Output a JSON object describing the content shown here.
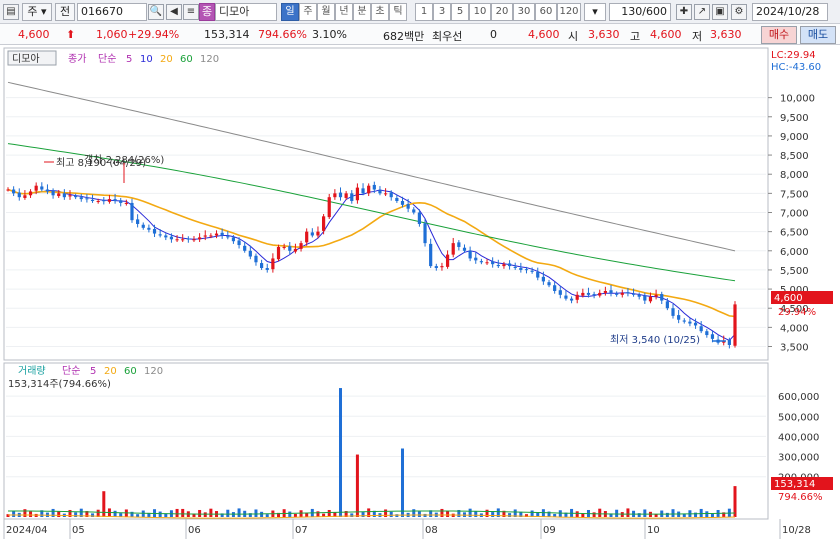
{
  "toolbar": {
    "market": "주",
    "prev": "전",
    "code": "016670",
    "tag": "종",
    "name": "디모아",
    "periods": [
      "일",
      "주",
      "월",
      "년",
      "분",
      "초",
      "틱"
    ],
    "minutes": [
      "1",
      "3",
      "5",
      "10",
      "20",
      "30",
      "60",
      "120"
    ],
    "count": "130/600",
    "date": "2024/10/28"
  },
  "quote": {
    "price": "4,600",
    "change": "1,060",
    "change_pct": "+29.94%",
    "volume": "153,314",
    "volume_ratio": "794.66%",
    "turnover": "3.10%",
    "trade_value": "682백만",
    "short_label": "최우선",
    "short_value": "0",
    "current": "4,600",
    "open_label": "시",
    "open": "3,630",
    "high_label": "고",
    "high": "4,600",
    "low_label": "저",
    "low": "3,630",
    "buy": "매수",
    "sell": "매도"
  },
  "chart_data": [
    {
      "type": "candlestick",
      "title": "디모아",
      "legend": [
        "종가",
        "단순",
        "5",
        "10",
        "20",
        "60",
        "120"
      ],
      "ylim": [
        3200,
        10800
      ],
      "yticks": [
        "10,000",
        "9,500",
        "9,000",
        "8,500",
        "8,000",
        "7,500",
        "7,000",
        "6,500",
        "6,000",
        "5,500",
        "5,000",
        "4,500",
        "4,000",
        "3,500"
      ],
      "ytick_values": [
        10000,
        9500,
        9000,
        8500,
        8000,
        7500,
        7000,
        6500,
        6000,
        5500,
        5000,
        4500,
        4000,
        3500
      ],
      "lc_label": "LC:29.94",
      "hc_label": "HC:-43.60",
      "last_price_label": "4,600",
      "last_pct_label": "29.94%",
      "max_annotation": "최고 8,190 (04/29)",
      "max_overlay": "갭차 2,284(26%)",
      "min_annotation": "최저 3,540 (10/25)",
      "closes": [
        7600,
        7500,
        7400,
        7450,
        7550,
        7700,
        7600,
        7550,
        7450,
        7500,
        7400,
        7450,
        7400,
        7350,
        7350,
        7300,
        7300,
        7300,
        7350,
        7300,
        7250,
        7250,
        6800,
        6700,
        6600,
        6550,
        6450,
        6400,
        6350,
        6300,
        6300,
        6300,
        6300,
        6300,
        6350,
        6400,
        6400,
        6450,
        6400,
        6350,
        6250,
        6150,
        6000,
        5850,
        5700,
        5550,
        5500,
        5800,
        6100,
        6100,
        6000,
        6050,
        6200,
        6500,
        6400,
        6500,
        6900,
        7400,
        7500,
        7400,
        7500,
        7300,
        7650,
        7500,
        7700,
        7600,
        7500,
        7500,
        7400,
        7300,
        7200,
        7100,
        7000,
        6700,
        6200,
        5600,
        5550,
        5600,
        5900,
        6200,
        6100,
        6000,
        5800,
        5750,
        5700,
        5700,
        5650,
        5600,
        5650,
        5600,
        5550,
        5500,
        5500,
        5450,
        5300,
        5200,
        5100,
        4950,
        4850,
        4750,
        4700,
        4850,
        4900,
        4850,
        4850,
        4900,
        4950,
        4900,
        4850,
        4900,
        4900,
        4850,
        4800,
        4700,
        4800,
        4850,
        4700,
        4500,
        4300,
        4200,
        4150,
        4100,
        4050,
        3900,
        3800,
        3700,
        3600,
        3650,
        3540,
        4600
      ],
      "ma5_start": [
        7300,
        4100
      ],
      "ma20_start": [
        7800,
        4450
      ],
      "ma60_start": [
        8800,
        5250
      ],
      "ma120_start": [
        10400,
        6000
      ]
    },
    {
      "type": "bar",
      "title": "거래량",
      "legend": [
        "거래량",
        "단순",
        "5",
        "20",
        "60",
        "120"
      ],
      "current_label": "153,314주(794.66%)",
      "ylim": [
        0,
        680000
      ],
      "yticks": [
        "600,000",
        "500,000",
        "400,000",
        "300,000",
        "200,000"
      ],
      "ytick_values": [
        600000,
        500000,
        400000,
        300000,
        200000
      ],
      "last_value_label": "153,314",
      "last_pct_label": "794.66%",
      "x_labels": [
        "2024/04",
        "05",
        "06",
        "07",
        "08",
        "09",
        "10",
        "10/28"
      ],
      "x_label_index": [
        0,
        17,
        40,
        63,
        86,
        109,
        130,
        151
      ]
    }
  ],
  "colors": {
    "up": "#e2141c",
    "down": "#1f6fd6",
    "ma5": "#2a2ad8",
    "ma20": "#f3a912",
    "ma60": "#1aa13a",
    "ma120": "#8a8a8a"
  }
}
